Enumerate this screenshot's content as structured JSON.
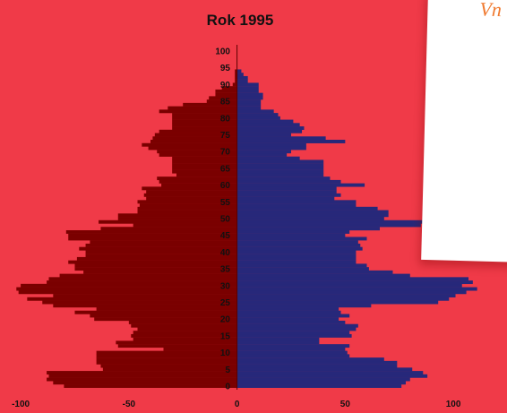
{
  "chart_data": {
    "type": "bar",
    "title": "Rok 1995",
    "orientation": "horizontal",
    "layout": "population-pyramid",
    "xlim": [
      -110,
      120
    ],
    "ylim": [
      0,
      100
    ],
    "x_ticks": [
      -100,
      -50,
      0,
      50,
      100
    ],
    "y_ticks": [
      0,
      5,
      10,
      15,
      20,
      25,
      30,
      35,
      40,
      45,
      50,
      55,
      60,
      65,
      70,
      75,
      80,
      85,
      90,
      95,
      100
    ],
    "ages": [
      0,
      1,
      2,
      3,
      4,
      5,
      6,
      7,
      8,
      9,
      10,
      11,
      12,
      13,
      14,
      15,
      16,
      17,
      18,
      19,
      20,
      21,
      22,
      23,
      24,
      25,
      26,
      27,
      28,
      29,
      30,
      31,
      32,
      33,
      34,
      35,
      36,
      37,
      38,
      39,
      40,
      41,
      42,
      43,
      44,
      45,
      46,
      47,
      48,
      49,
      50,
      51,
      52,
      53,
      54,
      55,
      56,
      57,
      58,
      59,
      60,
      61,
      62,
      63,
      64,
      65,
      66,
      67,
      68,
      69,
      70,
      71,
      72,
      73,
      74,
      75,
      76,
      77,
      78,
      79,
      80,
      81,
      82,
      83,
      84,
      85,
      86,
      87,
      88,
      89,
      90,
      91,
      92,
      93,
      94,
      95,
      96,
      97,
      98,
      99,
      100
    ],
    "series": [
      {
        "values": [
          -80,
          -85,
          -88,
          -87,
          -88,
          -62,
          -63,
          -65,
          -65,
          -65,
          -65,
          -34,
          -55,
          -56,
          -48,
          -49,
          -48,
          -46,
          -49,
          -50,
          -66,
          -68,
          -75,
          -65,
          -85,
          -90,
          -97,
          -85,
          -101,
          -102,
          -100,
          -88,
          -87,
          -82,
          -71,
          -75,
          -75,
          -78,
          -74,
          -70,
          -70,
          -73,
          -70,
          -68,
          -78,
          -78,
          -79,
          -63,
          -48,
          -64,
          -55,
          -55,
          -46,
          -46,
          -45,
          -46,
          -42,
          -43,
          -42,
          -44,
          -35,
          -36,
          -37,
          -28,
          -30,
          -30,
          -30,
          -30,
          -30,
          -36,
          -37,
          -41,
          -44,
          -40,
          -39,
          -38,
          -36,
          -30,
          -30,
          -30,
          -30,
          -30,
          -36,
          -32,
          -25,
          -14,
          -13,
          -10,
          -10,
          -7,
          -2,
          -1,
          -1,
          -1,
          -1,
          0,
          0,
          0,
          0,
          0,
          0
        ],
        "color": "#7a0000"
      },
      {
        "values": [
          76,
          78,
          80,
          88,
          86,
          81,
          74,
          74,
          68,
          52,
          51,
          50,
          52,
          38,
          38,
          53,
          52,
          55,
          56,
          50,
          47,
          52,
          48,
          47,
          62,
          93,
          98,
          101,
          106,
          111,
          104,
          109,
          107,
          80,
          72,
          61,
          60,
          55,
          55,
          55,
          55,
          58,
          57,
          56,
          60,
          50,
          52,
          66,
          85,
          86,
          68,
          70,
          70,
          65,
          55,
          55,
          45,
          48,
          46,
          46,
          59,
          48,
          43,
          40,
          40,
          40,
          40,
          40,
          29,
          23,
          25,
          32,
          32,
          50,
          41,
          25,
          30,
          31,
          29,
          26,
          20,
          19,
          17,
          11,
          11,
          11,
          12,
          12,
          10,
          10,
          10,
          5,
          5,
          3,
          2,
          0,
          0,
          0,
          0,
          0,
          0
        ],
        "color": "#27287a"
      }
    ],
    "grid": false,
    "legend": "none"
  },
  "overlay": {
    "text": "Vn"
  }
}
